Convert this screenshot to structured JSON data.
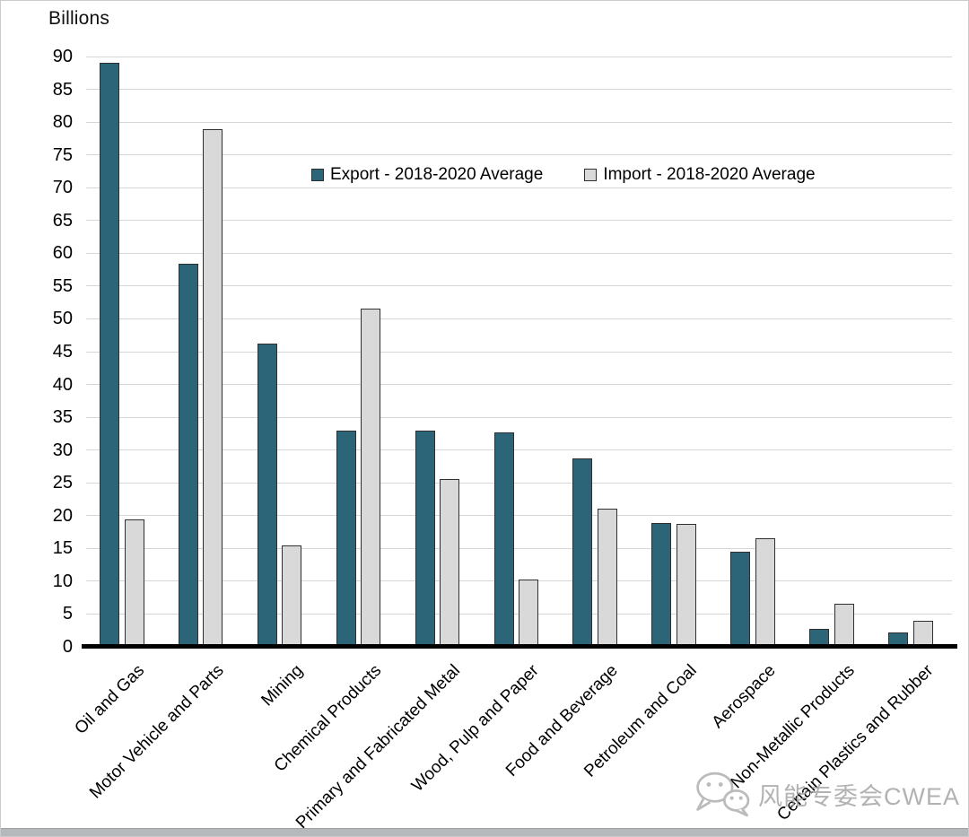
{
  "page": {
    "watermark_text": "风能专委会CWEA"
  },
  "chart_data": {
    "type": "bar",
    "title": "",
    "ylabel": "Billions",
    "xlabel": "",
    "ylim": [
      0,
      90
    ],
    "ytick_interval": 5,
    "yticks": [
      0,
      5,
      10,
      15,
      20,
      25,
      30,
      35,
      40,
      45,
      50,
      55,
      60,
      65,
      70,
      75,
      80,
      85,
      90
    ],
    "grid": true,
    "legend_position": "upper-center",
    "axis_color": "#000000",
    "gridline_color": "#d6d6d6",
    "categories": [
      "Oil and Gas",
      "Motor Vehicle and Parts",
      "Mining",
      "Chemical Products",
      "Primary and Fabricated Metal",
      "Wood, Pulp and Paper",
      "Food and Beverage",
      "Petroleum and Coal",
      "Aerospace",
      "Non-Metallic Products",
      "Certain Plastics and Rubber"
    ],
    "series": [
      {
        "name": "Export - 2018-2020 Average",
        "color": "#2C6577",
        "values": [
          89.0,
          58.4,
          46.2,
          33.0,
          32.9,
          32.7,
          28.7,
          18.9,
          14.5,
          2.8,
          2.2
        ]
      },
      {
        "name": "Import - 2018-2020 Average",
        "color": "#D9D9D9",
        "values": [
          19.4,
          78.9,
          15.4,
          51.6,
          25.6,
          10.2,
          21.0,
          18.8,
          16.5,
          6.5,
          4.0
        ]
      }
    ]
  }
}
